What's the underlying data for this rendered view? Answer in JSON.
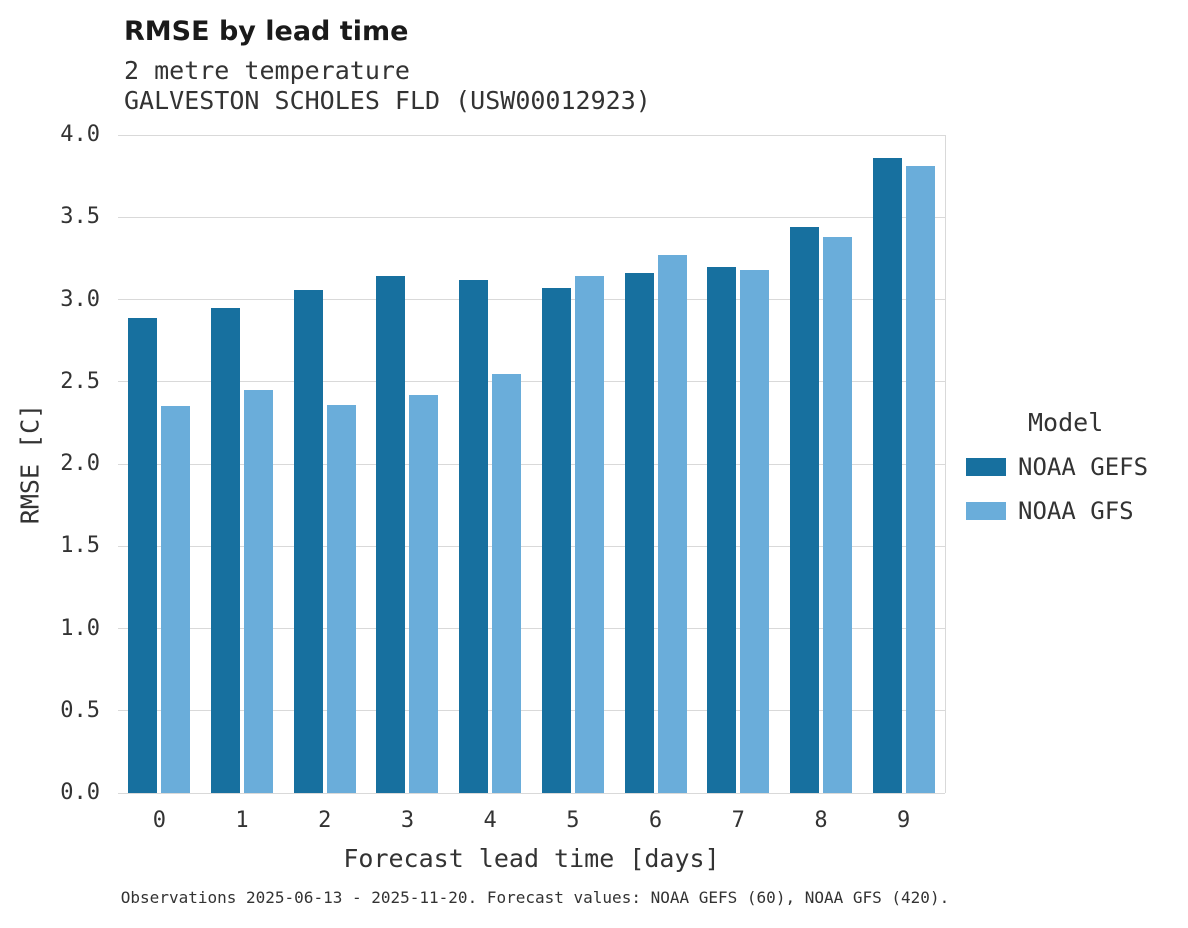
{
  "header": {
    "title": "RMSE by lead time",
    "subtitle": "2 metre temperature",
    "station": "GALVESTON SCHOLES FLD (USW00012923)"
  },
  "legend": {
    "title": "Model"
  },
  "footer": {
    "caption": "Observations 2025-06-13 - 2025-11-20. Forecast values: NOAA GEFS (60), NOAA GFS (420)."
  },
  "colors": {
    "gefs_dark_blue": "#17709f",
    "gfs_light_blue": "#6aadda",
    "gridline": "#d9d9d9",
    "text": "#333333"
  },
  "chart_data": {
    "type": "bar",
    "title": "RMSE by lead time",
    "subtitle": "2 metre temperature",
    "station": "GALVESTON SCHOLES FLD (USW00012923)",
    "xlabel": "Forecast lead time [days]",
    "ylabel": "RMSE [C]",
    "categories": [
      "0",
      "1",
      "2",
      "3",
      "4",
      "5",
      "6",
      "7",
      "8",
      "9"
    ],
    "series": [
      {
        "name": "NOAA GEFS",
        "color": "#17709f",
        "values": [
          2.89,
          2.95,
          3.06,
          3.14,
          3.12,
          3.07,
          3.16,
          3.2,
          3.44,
          3.86
        ]
      },
      {
        "name": "NOAA GFS",
        "color": "#6aadda",
        "values": [
          2.35,
          2.45,
          2.36,
          2.42,
          2.55,
          3.14,
          3.27,
          3.18,
          3.38,
          3.81
        ]
      }
    ],
    "ylim": [
      0,
      4.0
    ],
    "ytick_step": 0.5,
    "grid": "horizontal",
    "legend_position": "right",
    "legend_title": "Model"
  }
}
